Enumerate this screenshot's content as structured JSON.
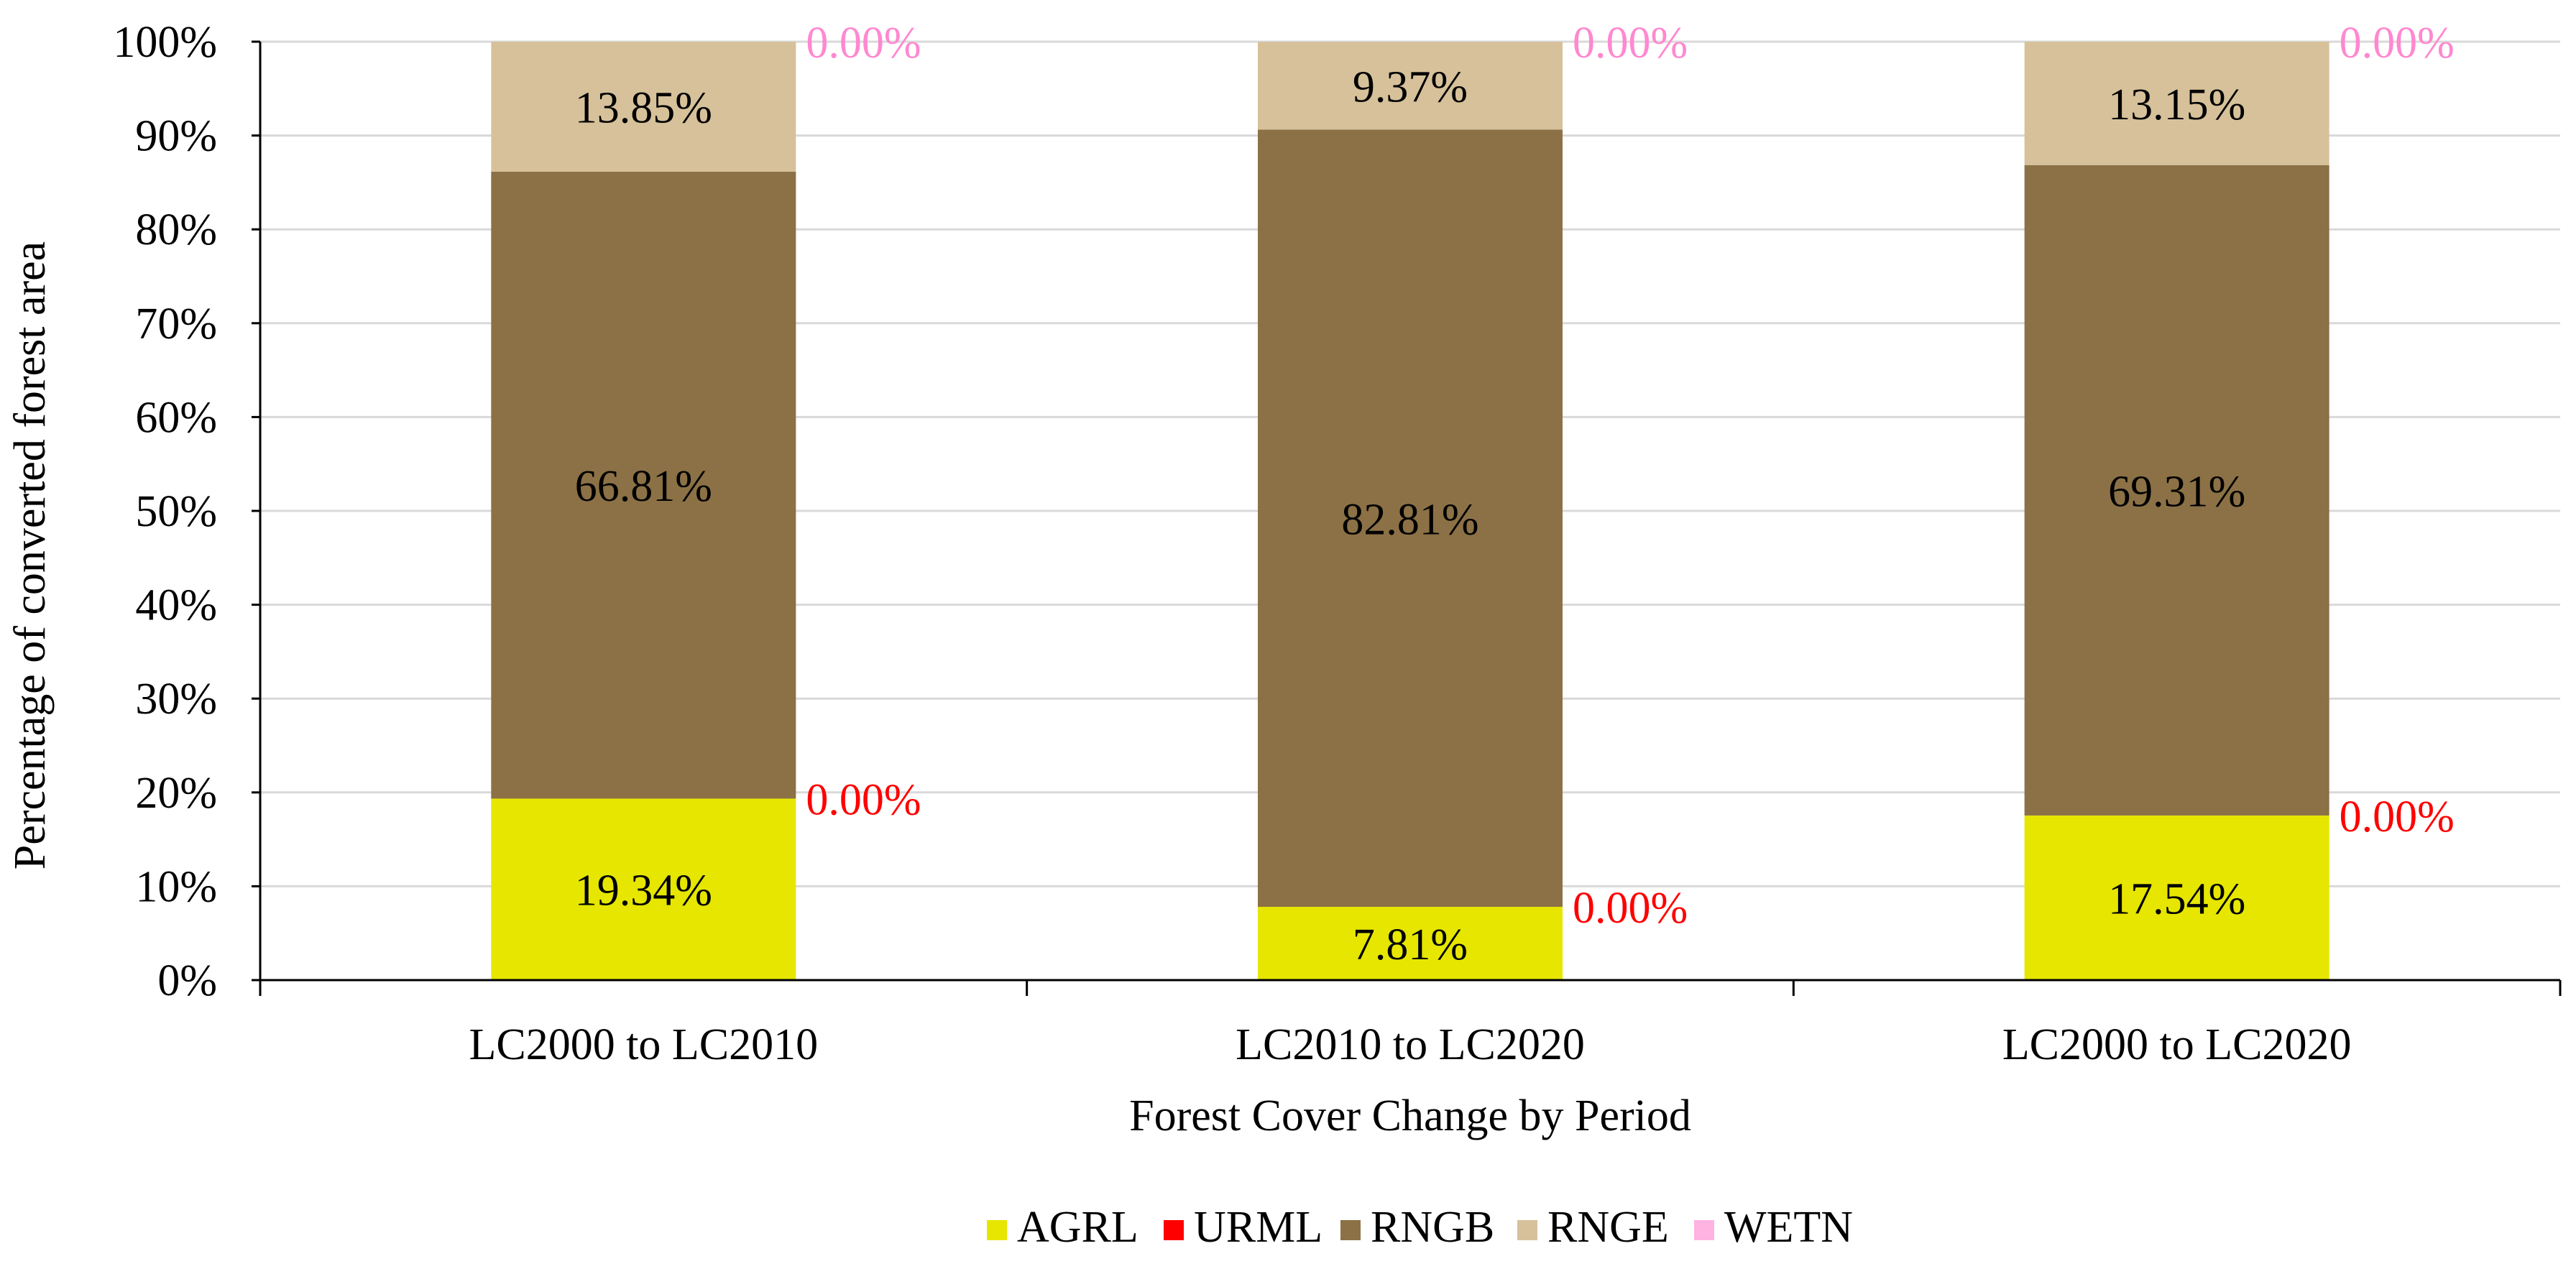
{
  "chart_data": {
    "type": "bar",
    "stacked": true,
    "percent": true,
    "title": "",
    "xlabel": "Forest Cover Change by Period",
    "ylabel": "Percentage of converted forest area",
    "ylim": [
      0,
      100
    ],
    "yticks": [
      "0%",
      "10%",
      "20%",
      "30%",
      "40%",
      "50%",
      "60%",
      "70%",
      "80%",
      "90%",
      "100%"
    ],
    "grid": true,
    "legend_position": "bottom",
    "categories": [
      "LC2000 to LC2010",
      "LC2010 to LC2020",
      "LC2000 to LC2020"
    ],
    "series": [
      {
        "name": "AGRL",
        "color": "#e6e600",
        "values": [
          19.34,
          7.81,
          17.54
        ],
        "labels": [
          "19.34%",
          "7.81%",
          "17.54%"
        ],
        "label_color": "#000000",
        "label_position": "center"
      },
      {
        "name": "URML",
        "color": "#ff0000",
        "values": [
          0.0,
          0.0,
          0.0
        ],
        "labels": [
          "0.00%",
          "0.00%",
          "0.00%"
        ],
        "label_color": "#ff0000",
        "label_position": "outside-right"
      },
      {
        "name": "RNGB",
        "color": "#8b7145",
        "values": [
          66.81,
          82.81,
          69.31
        ],
        "labels": [
          "66.81%",
          "82.81%",
          "69.31%"
        ],
        "label_color": "#000000",
        "label_position": "center"
      },
      {
        "name": "RNGE",
        "color": "#d6c19a",
        "values": [
          13.85,
          9.37,
          13.15
        ],
        "labels": [
          "13.85%",
          "9.37%",
          "13.15%"
        ],
        "label_color": "#000000",
        "label_position": "center"
      },
      {
        "name": "WETN",
        "color": "#ffb3e1",
        "values": [
          0.0,
          0.0,
          0.0
        ],
        "labels": [
          "0.00%",
          "0.00%",
          "0.00%"
        ],
        "label_color": "#ff88d0",
        "label_position": "outside-right"
      }
    ]
  }
}
